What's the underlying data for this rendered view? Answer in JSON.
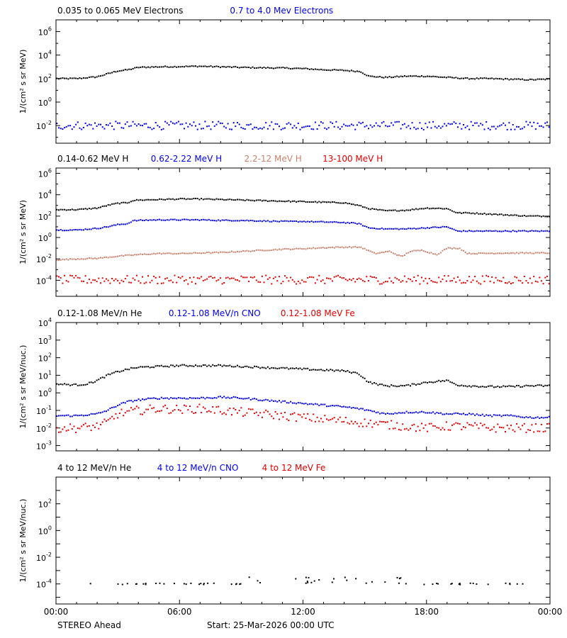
{
  "colors": {
    "black": "#000000",
    "blue": "#0000ee",
    "tan": "#c8826e",
    "red": "#e00000",
    "frame": "#000000"
  },
  "footer": {
    "left": "STEREO Ahead",
    "center": "Start: 25-Mar-2026 00:00 UTC"
  },
  "x_axis": {
    "range_hours": [
      0,
      24
    ],
    "ticks": [
      {
        "h": 0,
        "label": "00:00"
      },
      {
        "h": 6,
        "label": "06:00"
      },
      {
        "h": 12,
        "label": "12:00"
      },
      {
        "h": 18,
        "label": "18:00"
      },
      {
        "h": 24,
        "label": "00:00"
      }
    ]
  },
  "chart_data": [
    {
      "type": "scatter",
      "id": "electrons",
      "ylabel": "1/(cm² s sr MeV)",
      "scale": "log",
      "ylim_exp": [
        -3.5,
        7
      ],
      "tick_exps": [
        -2,
        0,
        2,
        4,
        6
      ],
      "label_exps": [
        -2,
        0,
        2,
        4,
        6
      ],
      "series": [
        {
          "name": "0.035 to 0.065 MeV Electrons",
          "color": "#000000",
          "x": [
            0,
            1,
            2,
            2.5,
            3,
            3.5,
            4,
            5,
            6,
            7,
            8,
            9,
            10,
            11,
            12,
            13,
            14,
            14.8,
            15.2,
            16,
            17,
            18,
            19,
            20,
            21,
            22,
            23,
            24
          ],
          "y": [
            2.0,
            2.0,
            2.15,
            2.4,
            2.65,
            2.75,
            2.95,
            3.0,
            3.02,
            3.05,
            3.0,
            2.95,
            2.92,
            2.9,
            2.85,
            2.75,
            2.7,
            2.6,
            2.2,
            2.1,
            2.2,
            2.2,
            2.1,
            2.0,
            2.0,
            1.95,
            1.9,
            1.95
          ]
        },
        {
          "name": "0.7 to 4.0 Mev Electrons",
          "color": "#0000ee",
          "x": [
            0,
            24
          ],
          "y": [
            -2.0,
            -2.0
          ],
          "scatter": 0.35
        }
      ]
    },
    {
      "type": "scatter",
      "id": "protons",
      "ylabel": "1/(cm² s sr MeV)",
      "scale": "log",
      "ylim_exp": [
        -5.5,
        6.5
      ],
      "tick_exps": [
        -4,
        -2,
        0,
        2,
        4,
        6
      ],
      "label_exps": [
        -4,
        -2,
        0,
        2,
        4,
        6
      ],
      "series": [
        {
          "name": "0.14-0.62 MeV H",
          "color": "#000000",
          "x": [
            0,
            1,
            2,
            2.5,
            3,
            3.5,
            3.7,
            4,
            5,
            6,
            7,
            8,
            9,
            10,
            11,
            12,
            13,
            14,
            14.7,
            15.2,
            16,
            17,
            18,
            19,
            19.5,
            20,
            21,
            22,
            23,
            24
          ],
          "y": [
            2.6,
            2.6,
            2.75,
            3.0,
            3.2,
            3.25,
            3.45,
            3.5,
            3.55,
            3.6,
            3.6,
            3.55,
            3.5,
            3.45,
            3.4,
            3.35,
            3.3,
            3.25,
            3.0,
            2.7,
            2.5,
            2.55,
            2.75,
            2.7,
            2.3,
            2.3,
            2.2,
            2.1,
            2.0,
            2.0
          ]
        },
        {
          "name": "0.62-2.22 MeV H",
          "color": "#0000ee",
          "x": [
            0,
            1,
            2,
            2.5,
            3,
            3.5,
            3.7,
            4,
            5,
            6,
            7,
            8,
            9,
            10,
            11,
            12,
            13,
            14,
            14.7,
            15.2,
            16,
            17,
            18,
            19,
            19.5,
            20,
            21,
            22,
            23,
            24
          ],
          "y": [
            0.7,
            0.7,
            0.85,
            1.0,
            1.2,
            1.3,
            1.55,
            1.6,
            1.65,
            1.65,
            1.65,
            1.6,
            1.6,
            1.55,
            1.5,
            1.5,
            1.45,
            1.4,
            1.3,
            0.9,
            0.8,
            0.8,
            0.9,
            1.0,
            0.6,
            0.6,
            0.6,
            0.6,
            0.6,
            0.6
          ]
        },
        {
          "name": "2.2-12 MeV H",
          "color": "#c8826e",
          "x": [
            0,
            1,
            2,
            3,
            4,
            5,
            6,
            7,
            8,
            9,
            10,
            11,
            12,
            13,
            14,
            14.8,
            15.5,
            16.2,
            16.8,
            17.2,
            17.8,
            18.5,
            19,
            19.3,
            19.6,
            20,
            22,
            24
          ],
          "y": [
            -2.1,
            -2.0,
            -1.95,
            -1.75,
            -1.6,
            -1.5,
            -1.5,
            -1.45,
            -1.4,
            -1.3,
            -1.2,
            -1.1,
            -1.05,
            -0.95,
            -0.9,
            -0.9,
            -1.5,
            -1.3,
            -1.8,
            -1.3,
            -1.2,
            -1.6,
            -1.0,
            -1.0,
            -1.0,
            -1.5,
            -1.45,
            -1.45
          ]
        },
        {
          "name": "13-100 MeV H",
          "color": "#e00000",
          "x": [
            0,
            24
          ],
          "y": [
            -3.95,
            -3.95
          ],
          "scatter": 0.4
        }
      ]
    },
    {
      "type": "scatter",
      "id": "heavy",
      "ylabel": "1/(cm² s sr MeV/nuc.)",
      "scale": "log",
      "ylim_exp": [
        -3.3,
        4
      ],
      "tick_exps": [
        -3,
        -2,
        -1,
        0,
        1,
        2,
        3,
        4
      ],
      "label_exps": [
        -3,
        -2,
        -1,
        0,
        1,
        2,
        3,
        4
      ],
      "series": [
        {
          "name": "0.12-1.08 MeV/n He",
          "color": "#000000",
          "x": [
            0,
            1,
            1.5,
            2,
            2.5,
            3,
            3.5,
            4,
            5,
            6,
            7,
            8,
            9,
            10,
            11,
            12,
            13,
            14,
            14.7,
            15.2,
            16,
            17,
            18,
            19,
            19.5,
            20,
            21,
            22,
            23,
            24
          ],
          "y": [
            0.5,
            0.45,
            0.5,
            0.7,
            1.0,
            1.2,
            1.35,
            1.45,
            1.5,
            1.55,
            1.55,
            1.55,
            1.5,
            1.45,
            1.4,
            1.35,
            1.3,
            1.25,
            1.1,
            0.6,
            0.4,
            0.4,
            0.6,
            0.7,
            0.45,
            0.4,
            0.35,
            0.35,
            0.4,
            0.4
          ]
        },
        {
          "name": "0.12-1.08 MeV/n CNO",
          "color": "#0000ee",
          "x": [
            0,
            1,
            2,
            2.5,
            3,
            3.5,
            4,
            5,
            6,
            7,
            8,
            9,
            10,
            11,
            12,
            13,
            14,
            14.7,
            15.2,
            16,
            17,
            18,
            19,
            20,
            21,
            22,
            23,
            24
          ],
          "y": [
            -1.3,
            -1.3,
            -1.2,
            -1.0,
            -0.7,
            -0.5,
            -0.4,
            -0.3,
            -0.3,
            -0.3,
            -0.25,
            -0.3,
            -0.4,
            -0.5,
            -0.6,
            -0.7,
            -0.8,
            -0.9,
            -1.0,
            -1.2,
            -1.1,
            -1.1,
            -1.2,
            -1.2,
            -1.3,
            -1.3,
            -1.4,
            -1.4
          ]
        },
        {
          "name": "0.12-1.08 MeV Fe",
          "color": "#e00000",
          "x": [
            0,
            1,
            2,
            2.5,
            3,
            4,
            5,
            6,
            7,
            8,
            9,
            10,
            11,
            12,
            13,
            14,
            15,
            16,
            17,
            18,
            19,
            20,
            21,
            22,
            23,
            24
          ],
          "y": [
            -2.0,
            -2.0,
            -1.9,
            -1.7,
            -1.2,
            -1.0,
            -0.9,
            -0.95,
            -0.9,
            -1.0,
            -1.1,
            -1.2,
            -1.3,
            -1.4,
            -1.5,
            -1.6,
            -1.7,
            -1.8,
            -1.9,
            -2.0,
            -1.9,
            -1.9,
            -2.0,
            -2.0,
            -2.0,
            -2.0
          ],
          "scatter": 0.25
        }
      ]
    },
    {
      "type": "scatter",
      "id": "high",
      "ylabel": "1/(cm² s sr MeV/nuc.)",
      "scale": "log",
      "ylim_exp": [
        -5.5,
        4
      ],
      "tick_exps": [
        -5,
        -4,
        -3,
        -2,
        -1,
        0,
        1,
        2,
        3
      ],
      "label_exps": [
        -4,
        -2,
        0,
        2
      ],
      "series": [
        {
          "name": "4 to 12 MeV/n He",
          "color": "#000000",
          "x": [
            0,
            24
          ],
          "y": [
            -4.0,
            -4.0
          ],
          "sparse": true
        },
        {
          "name": "4 to 12 MeV/n CNO",
          "color": "#0000ee",
          "x": [],
          "y": []
        },
        {
          "name": "4 to 12 MeV Fe",
          "color": "#e00000",
          "x": [],
          "y": []
        }
      ]
    }
  ]
}
